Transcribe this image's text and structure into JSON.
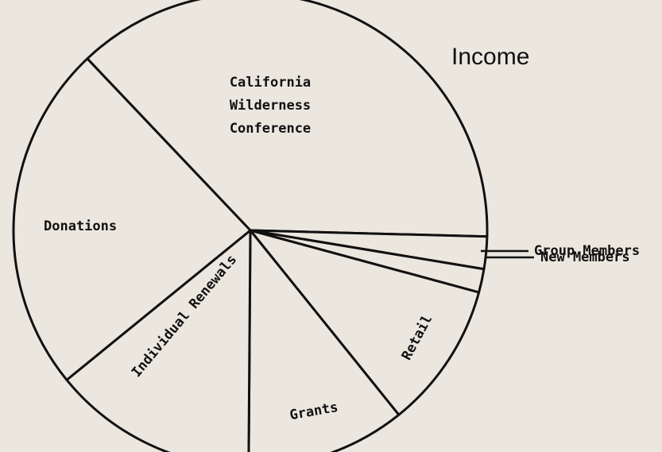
{
  "chart_data": {
    "type": "pie",
    "title": "Income",
    "categories": [
      "California Wilderness Conference",
      "Group Members",
      "New Members",
      "Retail",
      "Grants",
      "Individual Renewals",
      "Donations"
    ],
    "values": [
      37.5,
      2.2,
      1.6,
      10,
      10.9,
      14,
      23.8
    ],
    "color": "#111111"
  }
}
